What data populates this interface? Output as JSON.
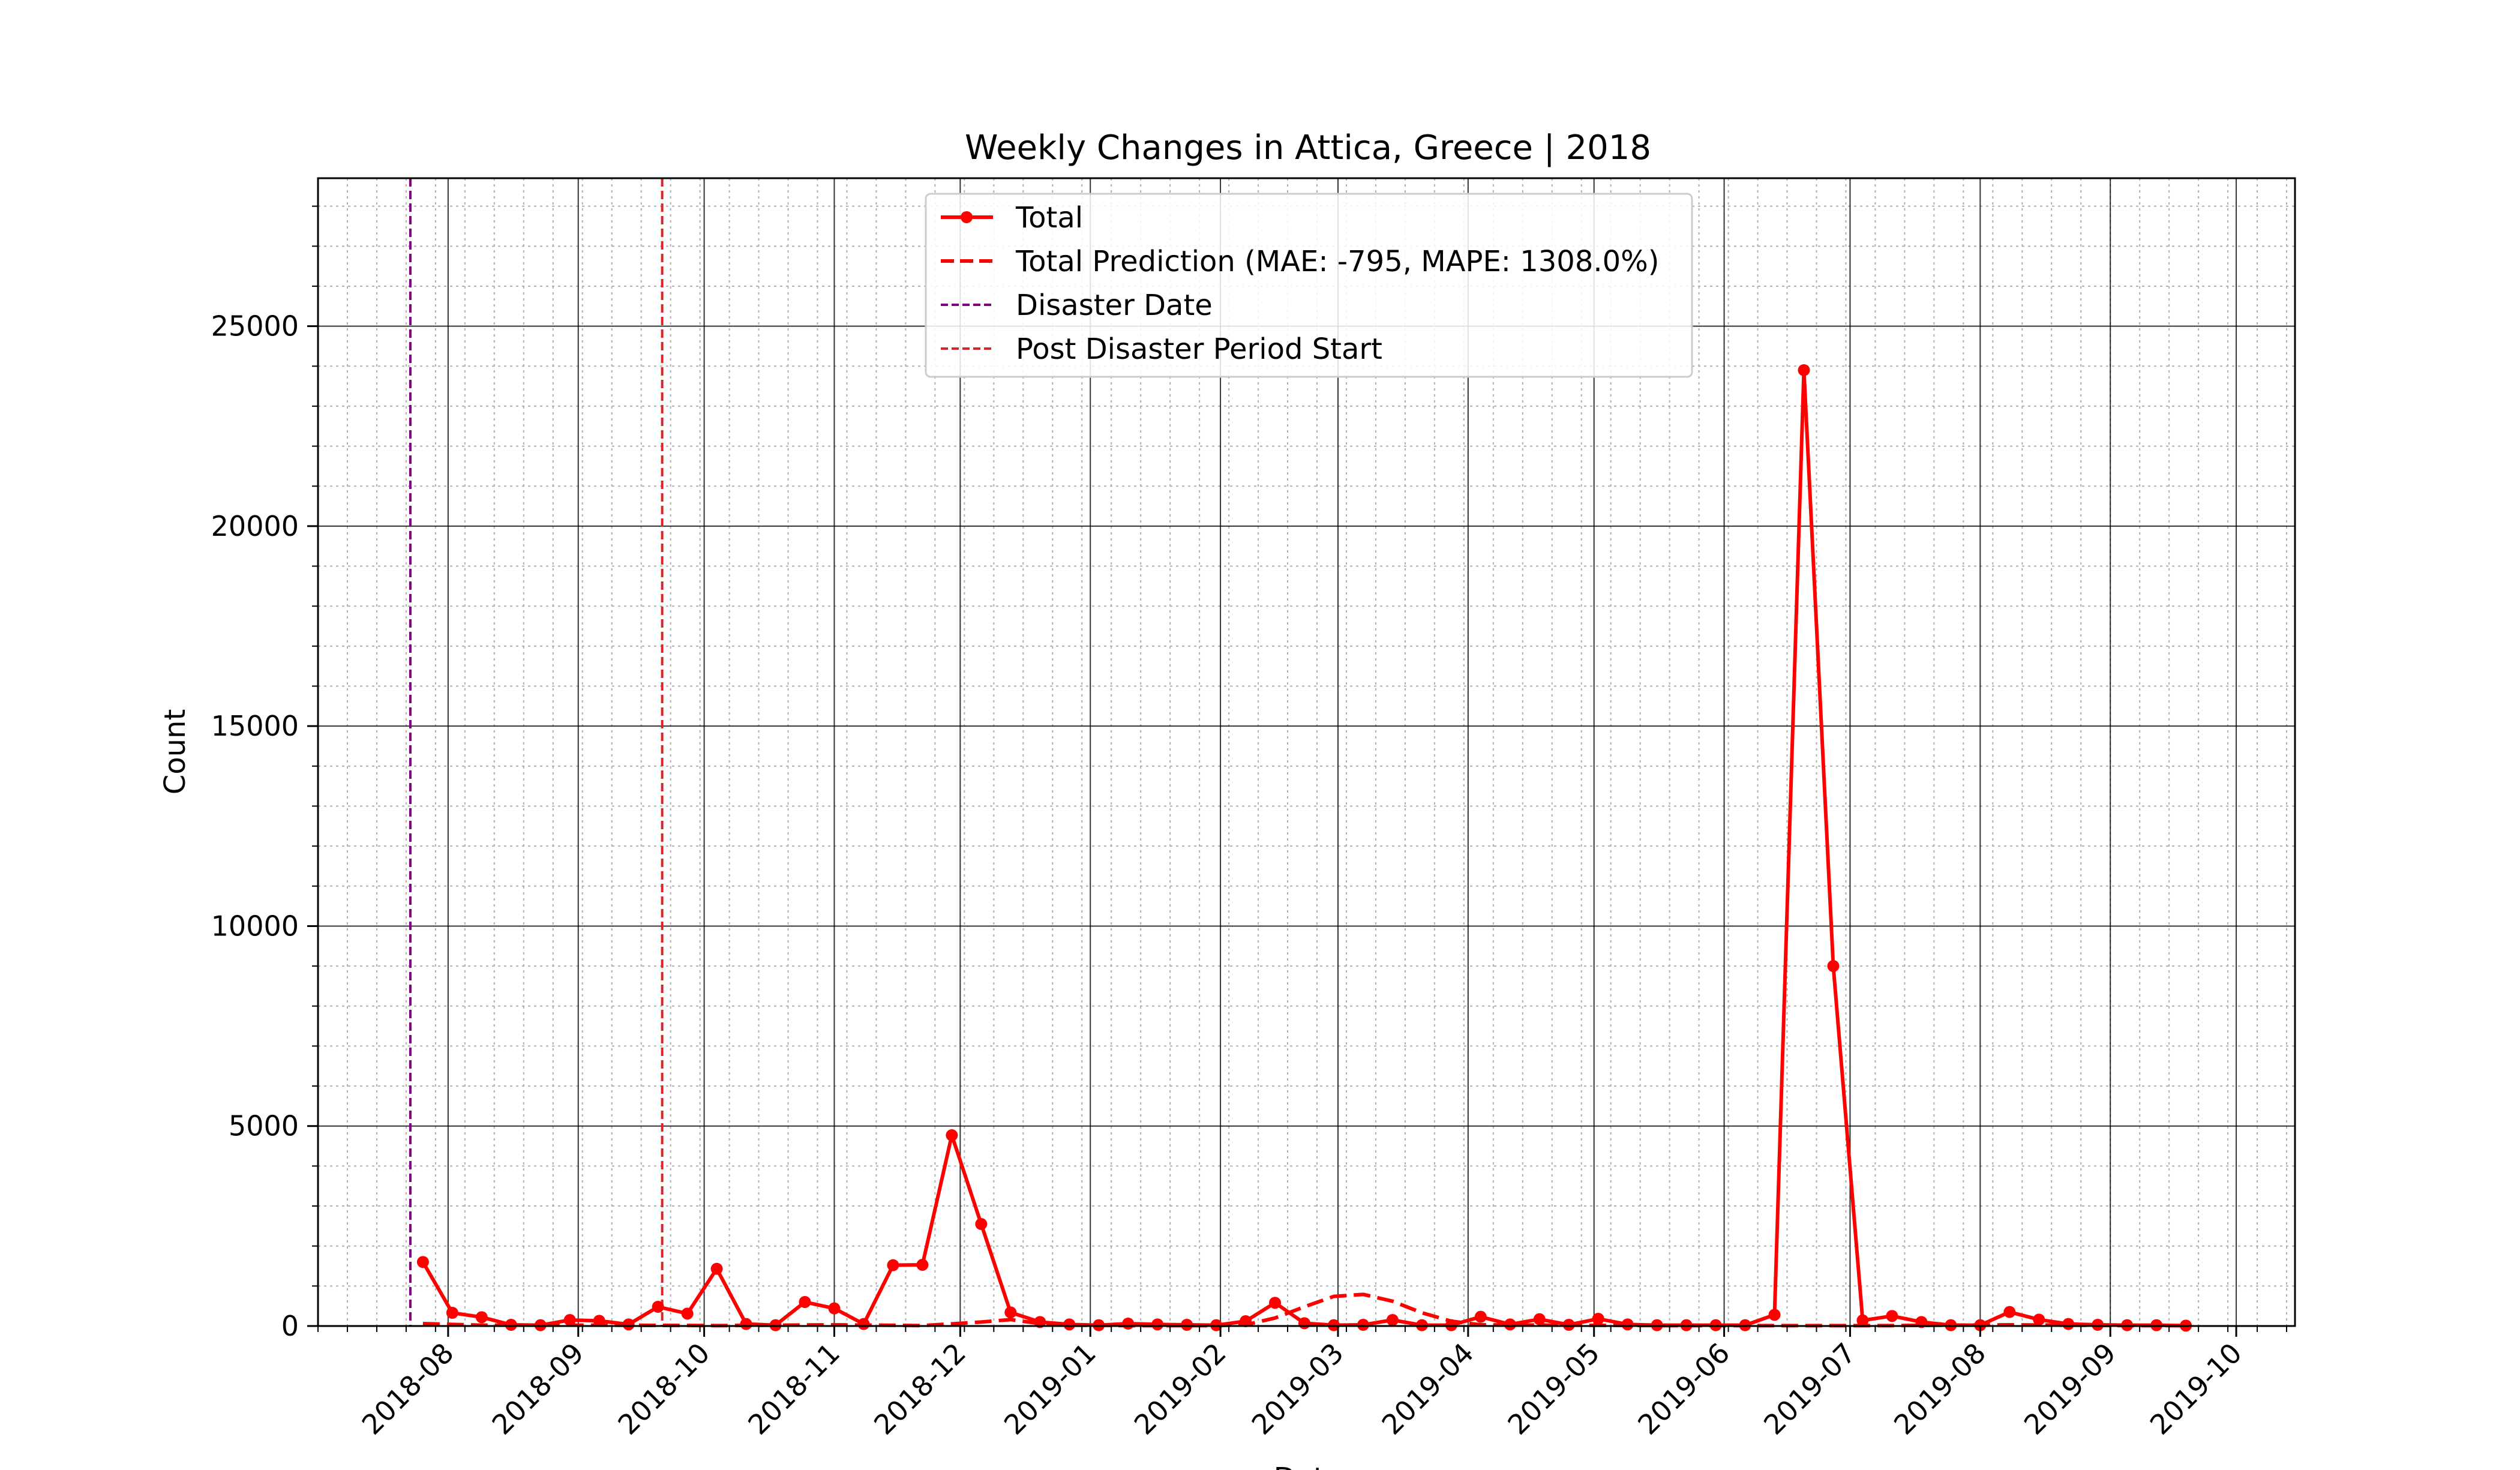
{
  "chart_data": {
    "type": "line",
    "title": "Weekly Changes in Attica, Greece | 2018",
    "xlabel": "Date",
    "ylabel": "Count",
    "x_range": [
      "2018-07-01",
      "2019-10-15"
    ],
    "ylim": [
      0,
      28700
    ],
    "y_ticks": [
      0,
      5000,
      10000,
      15000,
      20000,
      25000
    ],
    "x_ticks": [
      "2018-08",
      "2018-09",
      "2018-10",
      "2018-11",
      "2018-12",
      "2019-01",
      "2019-02",
      "2019-03",
      "2019-04",
      "2019-05",
      "2019-06",
      "2019-07",
      "2019-08",
      "2019-09",
      "2019-10"
    ],
    "grid": true,
    "legend_position": "top-center",
    "colors": {
      "total": "#ff0000",
      "prediction": "#ff0000",
      "disaster": "#800080",
      "post_period": "#d62728"
    },
    "series": [
      {
        "name": "Total",
        "style": "solid-marker",
        "x": [
          "2018-07-26",
          "2018-08-02",
          "2018-08-09",
          "2018-08-16",
          "2018-08-23",
          "2018-08-30",
          "2018-09-06",
          "2018-09-13",
          "2018-09-20",
          "2018-09-27",
          "2018-10-04",
          "2018-10-11",
          "2018-10-18",
          "2018-10-25",
          "2018-11-01",
          "2018-11-08",
          "2018-11-15",
          "2018-11-22",
          "2018-11-29",
          "2018-12-06",
          "2018-12-13",
          "2018-12-20",
          "2018-12-27",
          "2019-01-03",
          "2019-01-10",
          "2019-01-17",
          "2019-01-24",
          "2019-01-31",
          "2019-02-07",
          "2019-02-14",
          "2019-02-21",
          "2019-02-28",
          "2019-03-07",
          "2019-03-14",
          "2019-03-21",
          "2019-03-28",
          "2019-04-04",
          "2019-04-11",
          "2019-04-18",
          "2019-04-25",
          "2019-05-02",
          "2019-05-09",
          "2019-05-16",
          "2019-05-23",
          "2019-05-30",
          "2019-06-06",
          "2019-06-13",
          "2019-06-20",
          "2019-06-27",
          "2019-07-04",
          "2019-07-11",
          "2019-07-18",
          "2019-07-25",
          "2019-08-01",
          "2019-08-08",
          "2019-08-15",
          "2019-08-22",
          "2019-08-29",
          "2019-09-05",
          "2019-09-12",
          "2019-09-19"
        ],
        "values": [
          1600,
          330,
          220,
          30,
          20,
          150,
          130,
          40,
          480,
          310,
          1430,
          50,
          20,
          600,
          440,
          50,
          1520,
          1530,
          4770,
          2550,
          340,
          100,
          40,
          20,
          60,
          40,
          30,
          20,
          120,
          580,
          70,
          20,
          30,
          150,
          20,
          20,
          230,
          40,
          170,
          30,
          180,
          40,
          20,
          20,
          20,
          20,
          280,
          23900,
          9000,
          140,
          250,
          100,
          20,
          20,
          350,
          160,
          50,
          30,
          20,
          20,
          10
        ]
      },
      {
        "name": "Total Prediction (MAE: -795, MAPE: 1308.0%)",
        "style": "dashed",
        "x": [
          "2018-07-26",
          "2018-08-09",
          "2018-09-06",
          "2018-10-04",
          "2018-11-01",
          "2018-11-22",
          "2018-12-06",
          "2018-12-13",
          "2018-12-20",
          "2018-12-27",
          "2019-01-10",
          "2019-01-31",
          "2019-02-07",
          "2019-02-14",
          "2019-02-21",
          "2019-02-28",
          "2019-03-07",
          "2019-03-14",
          "2019-03-21",
          "2019-03-28",
          "2019-04-04",
          "2019-04-25",
          "2019-05-16",
          "2019-06-06",
          "2019-06-27",
          "2019-07-11",
          "2019-07-25",
          "2019-08-08",
          "2019-08-22",
          "2019-09-05",
          "2019-09-19"
        ],
        "values": [
          60,
          20,
          20,
          10,
          30,
          10,
          100,
          160,
          60,
          20,
          10,
          10,
          30,
          200,
          480,
          740,
          790,
          620,
          330,
          120,
          30,
          20,
          10,
          10,
          10,
          10,
          20,
          30,
          20,
          10,
          10
        ]
      }
    ],
    "vertical_lines": [
      {
        "name": "Disaster Date",
        "x": "2018-07-23"
      },
      {
        "name": "Post Disaster Period Start",
        "x": "2018-09-21"
      }
    ]
  }
}
